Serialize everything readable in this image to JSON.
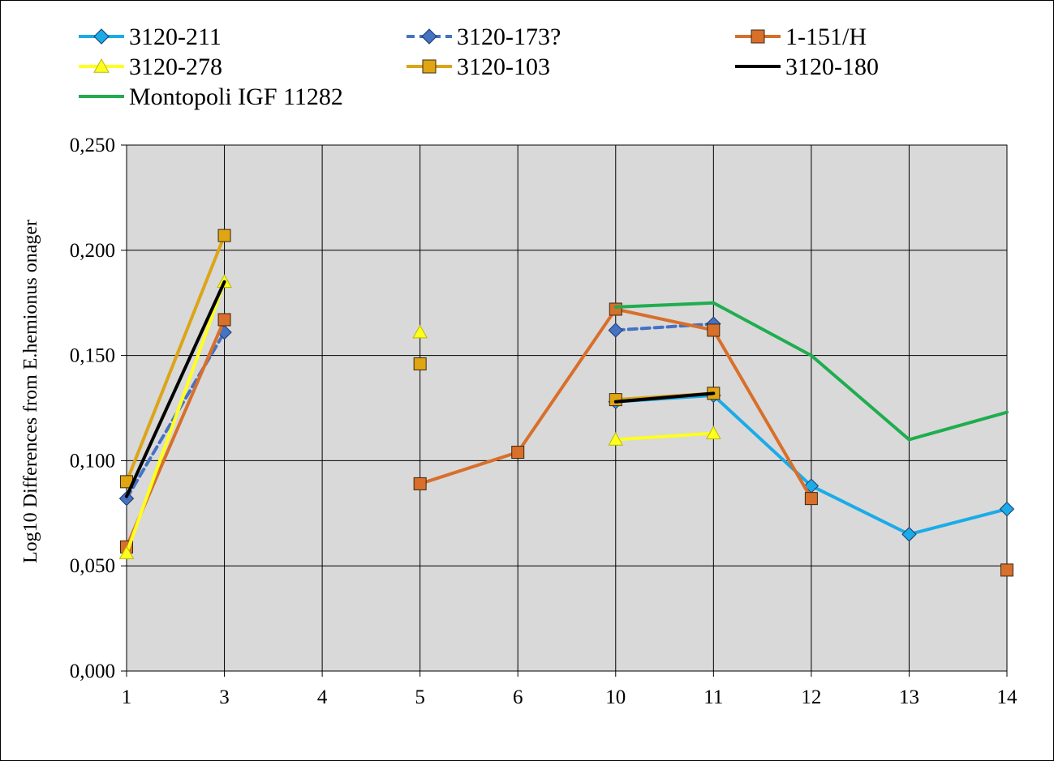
{
  "chart_data": {
    "type": "line",
    "title": "",
    "xlabel": "",
    "ylabel": "Log10 Differences from E.hemionus onager",
    "categories": [
      "1",
      "3",
      "4",
      "5",
      "6",
      "10",
      "11",
      "12",
      "13",
      "14"
    ],
    "ylim": [
      0,
      0.25
    ],
    "yticks": [
      0,
      0.05,
      0.1,
      0.15,
      0.2,
      0.25
    ],
    "ytick_labels": [
      "0,000",
      "0,050",
      "0,100",
      "0,150",
      "0,200",
      "0,250"
    ],
    "grid": true,
    "plot_background": "#d9d9d9",
    "legend_position": "top",
    "series": [
      {
        "name": "3120-211",
        "color": "#1aabe8",
        "marker": "diamond",
        "marker_color": "#1aabe8",
        "dash": false,
        "connect": true,
        "values": [
          null,
          null,
          null,
          null,
          null,
          0.128,
          0.131,
          0.088,
          0.065,
          0.077
        ]
      },
      {
        "name": "3120-173?",
        "color": "#4472c4",
        "marker": "diamond",
        "marker_color": "#4472c4",
        "dash": true,
        "connect": true,
        "values": [
          0.082,
          0.161,
          null,
          null,
          null,
          0.162,
          0.165,
          null,
          null,
          null
        ]
      },
      {
        "name": "1-151/H",
        "color": "#d86f2b",
        "marker": "square",
        "marker_color": "#d86f2b",
        "dash": false,
        "connect": true,
        "values": [
          0.059,
          0.167,
          null,
          0.089,
          0.104,
          0.172,
          0.162,
          0.082,
          null,
          0.048
        ]
      },
      {
        "name": "3120-278",
        "color": "#ffff1f",
        "marker": "triangle",
        "marker_color": "#ffff1f",
        "dash": false,
        "connect": true,
        "values": [
          0.056,
          0.185,
          null,
          0.161,
          null,
          0.11,
          0.113,
          null,
          null,
          null
        ]
      },
      {
        "name": "3120-103",
        "color": "#dba518",
        "marker": "square",
        "marker_color": "#e0a512",
        "dash": false,
        "connect": true,
        "values": [
          0.09,
          0.207,
          null,
          0.146,
          null,
          0.129,
          0.132,
          null,
          null,
          null
        ]
      },
      {
        "name": "3120-180",
        "color": "#000000",
        "marker": "none",
        "marker_color": "#000000",
        "dash": false,
        "connect": true,
        "values": [
          0.083,
          0.185,
          null,
          null,
          null,
          0.128,
          0.132,
          null,
          null,
          null
        ]
      },
      {
        "name": "Montopoli IGF 11282",
        "color": "#1fad4f",
        "marker": "none",
        "marker_color": "#1fad4f",
        "dash": false,
        "connect": true,
        "values": [
          null,
          null,
          null,
          null,
          null,
          0.173,
          0.175,
          0.15,
          0.11,
          0.123
        ]
      }
    ]
  }
}
